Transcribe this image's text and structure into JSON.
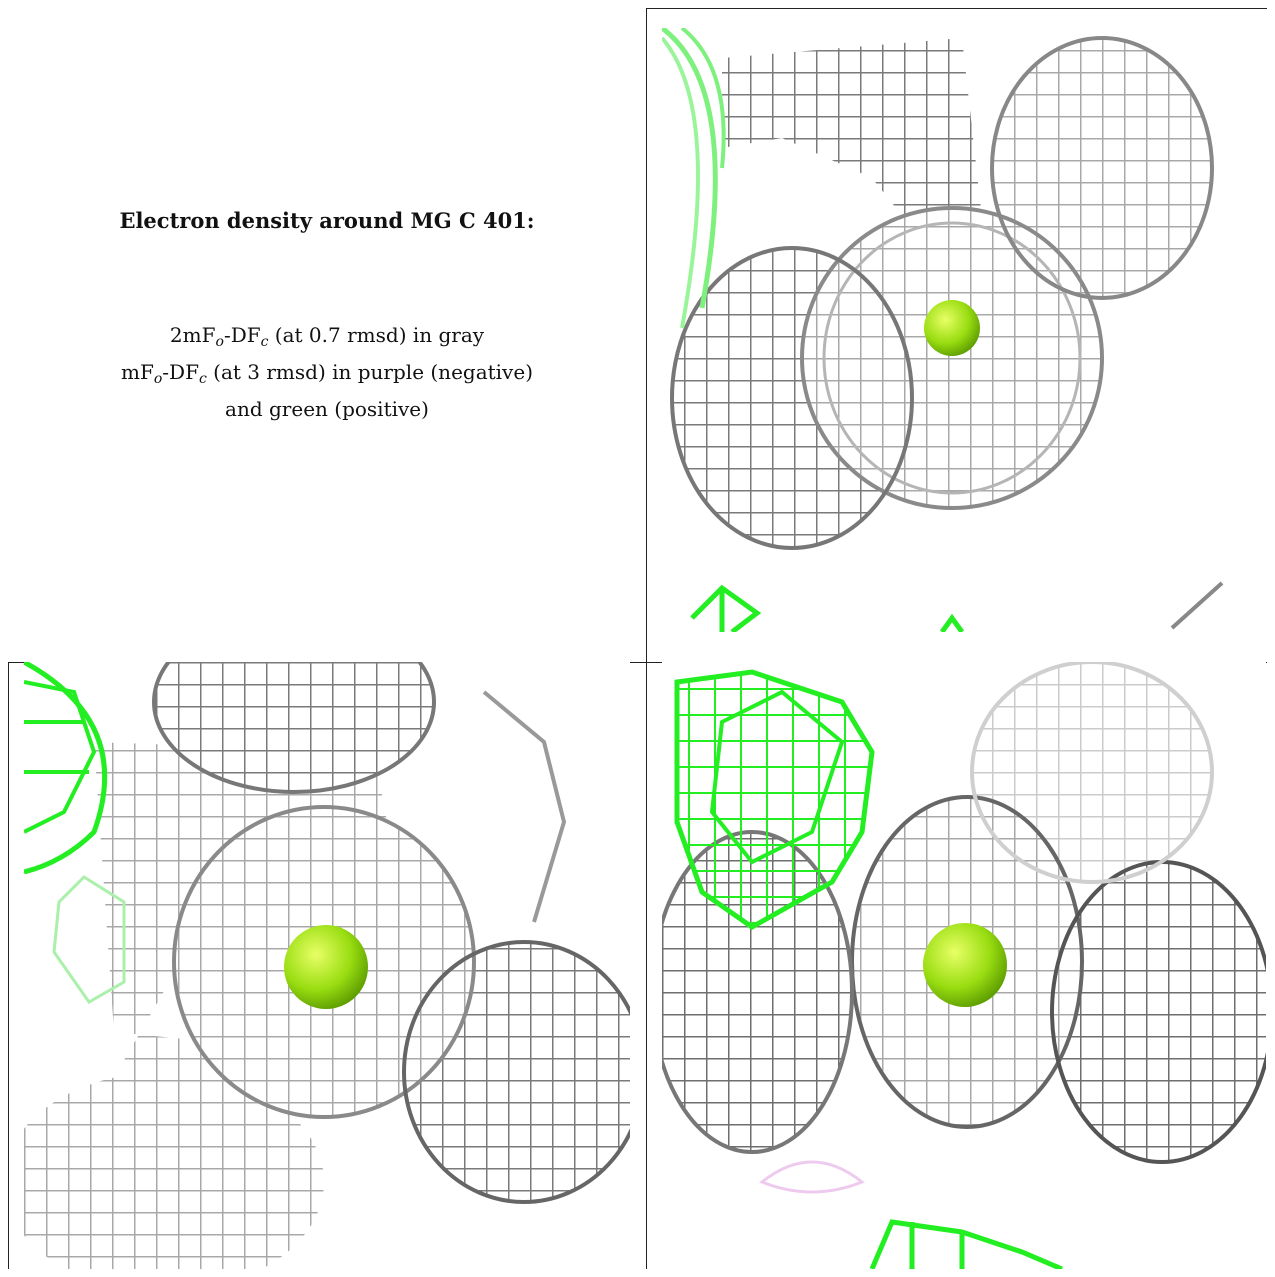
{
  "title": "Electron density around MG C 401:",
  "legend": {
    "line1": {
      "prefix": "2mF",
      "sub1": "o",
      "mid": "-DF",
      "sub2": "c",
      "suffix": " (at 0.7 rmsd) in gray"
    },
    "line2": {
      "prefix": "mF",
      "sub1": "o",
      "mid": "-DF",
      "sub2": "c",
      "suffix": " (at 3 rmsd) in purple (negative)"
    },
    "line3": "and green (positive)"
  },
  "colors": {
    "map_2fofc": "#a9a9a9",
    "map_2fofc_dark": "#555555",
    "map_fofc_positive": "#22ee22",
    "map_fofc_negative": "#cc66cc",
    "magnesium": "#99dd11"
  },
  "panels": [
    {
      "view": "view-1"
    },
    {
      "view": "view-2"
    },
    {
      "view": "view-3"
    }
  ]
}
